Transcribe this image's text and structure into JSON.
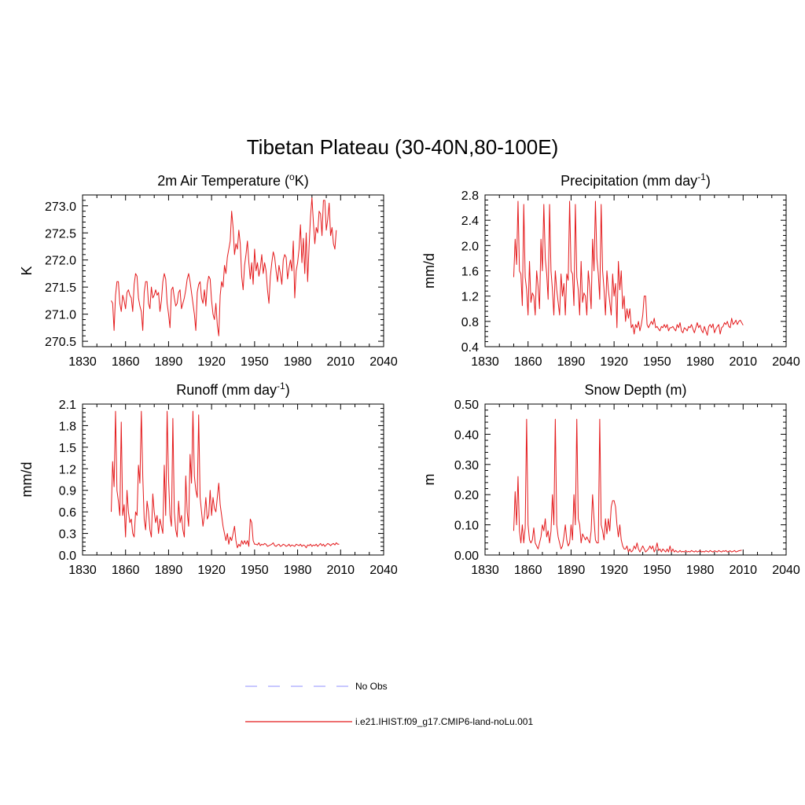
{
  "title": "Tibetan Plateau (30-40N,80-100E)",
  "colors": {
    "model": "#e41a1c",
    "obs": "#a6a6ff"
  },
  "legend": [
    {
      "label": "No Obs",
      "style": "dashed",
      "color": "#a6a6ff"
    },
    {
      "label": "i.e21.IHIST.f09_g17.CMIP6-land-noLu.001",
      "style": "solid",
      "color": "#e41a1c"
    }
  ],
  "chart_data": [
    {
      "type": "line",
      "title": "2m Air Temperature (°K)",
      "title_parts": {
        "main": "2m Air Temperature (",
        "sup": "o",
        "tail": "K)"
      },
      "xlabel": "",
      "ylabel": "K",
      "xlim": [
        1830,
        2040
      ],
      "ylim": [
        270.4,
        273.2
      ],
      "xticks": [
        1830,
        1860,
        1890,
        1920,
        1950,
        1980,
        2010,
        2040
      ],
      "yticks": [
        270.5,
        271.0,
        271.5,
        272.0,
        272.5,
        273.0
      ],
      "yticks_labels": [
        "270.5",
        "271.0",
        "271.5",
        "272.0",
        "272.5",
        "273.0"
      ],
      "series": [
        {
          "x_start": 1850,
          "x_step": 1,
          "values": [
            271.25,
            271.2,
            270.7,
            271.35,
            271.6,
            271.6,
            271.2,
            271.05,
            271.35,
            271.25,
            271.1,
            271.4,
            271.45,
            271.35,
            271.3,
            271.05,
            271.55,
            271.75,
            271.7,
            271.3,
            271.15,
            271.05,
            270.7,
            271.4,
            271.6,
            271.6,
            271.2,
            271.1,
            271.5,
            271.3,
            271.35,
            271.45,
            271.35,
            271.4,
            271.05,
            271.25,
            271.6,
            271.75,
            271.65,
            271.2,
            271.0,
            270.75,
            271.45,
            271.5,
            271.3,
            271.15,
            271.2,
            271.4,
            271.45,
            271.1,
            271.2,
            271.3,
            271.45,
            271.65,
            271.75,
            271.6,
            271.4,
            271.2,
            271.0,
            270.7,
            271.4,
            271.55,
            271.6,
            271.3,
            271.2,
            271.45,
            271.15,
            271.55,
            271.7,
            271.65,
            271.25,
            271.0,
            270.9,
            271.2,
            270.8,
            270.6,
            271.35,
            271.6,
            271.5,
            271.9,
            271.75,
            272.05,
            272.2,
            272.35,
            272.9,
            272.6,
            272.1,
            272.3,
            272.2,
            272.55,
            272.3,
            271.7,
            271.45,
            271.9,
            272.1,
            272.35,
            271.95,
            271.65,
            271.95,
            271.55,
            272.2,
            271.8,
            271.95,
            271.7,
            271.85,
            272.1,
            271.75,
            271.95,
            271.8,
            271.45,
            271.2,
            271.7,
            271.95,
            272.15,
            272.05,
            271.8,
            271.6,
            271.9,
            271.75,
            271.55,
            272.0,
            272.1,
            272.05,
            271.65,
            271.85,
            272.0,
            271.8,
            272.35,
            271.3,
            271.8,
            271.95,
            272.2,
            272.65,
            271.95,
            272.4,
            271.75,
            272.5,
            271.6,
            272.25,
            272.8,
            273.15,
            272.7,
            272.3,
            272.6,
            272.5,
            272.9,
            272.85,
            272.45,
            273.1,
            273.1,
            272.55,
            272.75,
            273.05,
            272.45,
            272.6,
            272.3,
            272.2,
            272.55
          ]
        }
      ]
    },
    {
      "type": "line",
      "title": "Precipitation (mm day⁻¹)",
      "title_parts": {
        "main": "Precipitation (mm day",
        "sup": "-1",
        "tail": ")"
      },
      "xlabel": "",
      "ylabel": "mm/d",
      "xlim": [
        1830,
        2040
      ],
      "ylim": [
        0.4,
        2.8
      ],
      "xticks": [
        1830,
        1860,
        1890,
        1920,
        1950,
        1980,
        2010,
        2040
      ],
      "yticks": [
        0.4,
        0.8,
        1.2,
        1.6,
        2.0,
        2.4,
        2.8
      ],
      "yticks_labels": [
        "0.4",
        "0.8",
        "1.2",
        "1.6",
        "2.0",
        "2.4",
        "2.8"
      ],
      "series": [
        {
          "x_start": 1850,
          "x_step": 1,
          "values": [
            1.5,
            2.1,
            1.7,
            2.7,
            1.6,
            1.55,
            1.05,
            2.65,
            1.5,
            1.3,
            0.9,
            1.75,
            1.1,
            1.25,
            1.2,
            0.9,
            1.6,
            1.35,
            1.0,
            2.1,
            1.6,
            2.65,
            1.8,
            1.55,
            1.15,
            2.65,
            1.6,
            1.3,
            0.9,
            1.6,
            1.3,
            1.1,
            0.9,
            1.55,
            1.2,
            1.4,
            0.9,
            1.55,
            1.45,
            2.7,
            1.6,
            1.55,
            1.05,
            2.65,
            1.5,
            1.3,
            0.9,
            1.75,
            1.1,
            1.25,
            1.2,
            0.9,
            1.6,
            1.35,
            1.0,
            2.1,
            1.6,
            2.7,
            1.8,
            1.55,
            1.15,
            2.65,
            1.6,
            1.3,
            0.9,
            1.6,
            1.3,
            1.1,
            0.9,
            1.55,
            1.2,
            1.4,
            0.7,
            1.75,
            1.3,
            1.6,
            1.0,
            1.2,
            0.8,
            1.0,
            0.85,
            1.0,
            0.7,
            0.75,
            0.6,
            0.75,
            0.7,
            0.8,
            0.65,
            0.75,
            0.9,
            1.2,
            1.2,
            0.75,
            0.7,
            0.75,
            0.8,
            0.75,
            0.85,
            0.7,
            0.72,
            0.68,
            0.65,
            0.72,
            0.7,
            0.75,
            0.7,
            0.75,
            0.65,
            0.7,
            0.7,
            0.72,
            0.68,
            0.65,
            0.75,
            0.7,
            0.78,
            0.65,
            0.62,
            0.7,
            0.68,
            0.65,
            0.72,
            0.7,
            0.75,
            0.68,
            0.62,
            0.7,
            0.78,
            0.7,
            0.74,
            0.66,
            0.62,
            0.72,
            0.65,
            0.58,
            0.72,
            0.75,
            0.7,
            0.76,
            0.62,
            0.68,
            0.72,
            0.75,
            0.6,
            0.7,
            0.72,
            0.78,
            0.75,
            0.8,
            0.72,
            0.7,
            0.85,
            0.75,
            0.78,
            0.82,
            0.75,
            0.8,
            0.82,
            0.78,
            0.74
          ]
        }
      ]
    },
    {
      "type": "line",
      "title": "Runoff (mm day⁻¹)",
      "title_parts": {
        "main": "Runoff (mm day",
        "sup": "-1",
        "tail": ")"
      },
      "xlabel": "",
      "ylabel": "mm/d",
      "xlim": [
        1830,
        2040
      ],
      "ylim": [
        0.0,
        2.1
      ],
      "xticks": [
        1830,
        1860,
        1890,
        1920,
        1950,
        1980,
        2010,
        2040
      ],
      "yticks": [
        0.0,
        0.3,
        0.6,
        0.9,
        1.2,
        1.5,
        1.8,
        2.1
      ],
      "yticks_labels": [
        "0.0",
        "0.3",
        "0.6",
        "0.9",
        "1.2",
        "1.5",
        "1.8",
        "2.1"
      ],
      "series": [
        {
          "x_start": 1850,
          "x_step": 1,
          "values": [
            0.6,
            1.3,
            0.95,
            2.0,
            0.9,
            0.75,
            0.55,
            1.85,
            0.55,
            0.7,
            0.25,
            0.9,
            0.6,
            0.45,
            0.5,
            0.3,
            0.25,
            0.6,
            0.55,
            1.25,
            1.0,
            2.0,
            1.1,
            0.5,
            0.35,
            0.75,
            0.6,
            0.35,
            0.25,
            0.85,
            0.6,
            0.45,
            0.55,
            0.3,
            0.5,
            0.4,
            0.3,
            1.25,
            0.55,
            2.0,
            1.05,
            0.55,
            0.4,
            1.9,
            0.6,
            0.35,
            0.25,
            0.75,
            0.45,
            0.55,
            0.35,
            0.25,
            1.1,
            0.6,
            0.4,
            1.4,
            1.0,
            2.0,
            1.1,
            0.9,
            0.8,
            1.95,
            0.8,
            0.6,
            0.4,
            0.55,
            0.8,
            0.5,
            0.55,
            0.9,
            0.55,
            0.8,
            0.65,
            0.6,
            0.8,
            1.0,
            0.7,
            0.55,
            0.4,
            0.3,
            0.2,
            0.3,
            0.15,
            0.25,
            0.2,
            0.3,
            0.4,
            0.2,
            0.1,
            0.15,
            0.12,
            0.2,
            0.15,
            0.2,
            0.15,
            0.2,
            0.12,
            0.5,
            0.45,
            0.2,
            0.15,
            0.15,
            0.14,
            0.17,
            0.13,
            0.15,
            0.14,
            0.16,
            0.15,
            0.12,
            0.13,
            0.14,
            0.15,
            0.17,
            0.13,
            0.12,
            0.14,
            0.15,
            0.12,
            0.13,
            0.15,
            0.14,
            0.12,
            0.13,
            0.15,
            0.12,
            0.14,
            0.13,
            0.12,
            0.15,
            0.14,
            0.13,
            0.15,
            0.12,
            0.14,
            0.13,
            0.1,
            0.14,
            0.13,
            0.15,
            0.12,
            0.14,
            0.13,
            0.15,
            0.12,
            0.14,
            0.16,
            0.13,
            0.15,
            0.12,
            0.14,
            0.16,
            0.15,
            0.13,
            0.15,
            0.16,
            0.14,
            0.17,
            0.15,
            0.15
          ]
        }
      ]
    },
    {
      "type": "line",
      "title": "Snow Depth (m)",
      "title_parts": {
        "main": "Snow Depth (m)",
        "sup": "",
        "tail": ""
      },
      "xlabel": "",
      "ylabel": "m",
      "xlim": [
        1830,
        2040
      ],
      "ylim": [
        0.0,
        0.5
      ],
      "xticks": [
        1830,
        1860,
        1890,
        1920,
        1950,
        1980,
        2010,
        2040
      ],
      "yticks": [
        0.0,
        0.1,
        0.2,
        0.3,
        0.4,
        0.5
      ],
      "yticks_labels": [
        "0.00",
        "0.10",
        "0.20",
        "0.30",
        "0.40",
        "0.50"
      ],
      "series": [
        {
          "x_start": 1850,
          "x_step": 1,
          "values": [
            0.08,
            0.21,
            0.1,
            0.26,
            0.08,
            0.04,
            0.1,
            0.04,
            0.09,
            0.45,
            0.1,
            0.05,
            0.04,
            0.05,
            0.09,
            0.04,
            0.03,
            0.02,
            0.04,
            0.06,
            0.1,
            0.08,
            0.12,
            0.06,
            0.08,
            0.04,
            0.08,
            0.2,
            0.1,
            0.45,
            0.1,
            0.06,
            0.04,
            0.02,
            0.03,
            0.06,
            0.1,
            0.05,
            0.03,
            0.04,
            0.1,
            0.05,
            0.2,
            0.1,
            0.45,
            0.12,
            0.1,
            0.04,
            0.07,
            0.06,
            0.05,
            0.06,
            0.05,
            0.04,
            0.08,
            0.2,
            0.12,
            0.05,
            0.04,
            0.04,
            0.45,
            0.1,
            0.08,
            0.05,
            0.12,
            0.07,
            0.12,
            0.08,
            0.16,
            0.18,
            0.18,
            0.16,
            0.1,
            0.06,
            0.1,
            0.05,
            0.03,
            0.02,
            0.02,
            0.03,
            0.01,
            0.02,
            0.01,
            0.015,
            0.03,
            0.02,
            0.04,
            0.02,
            0.01,
            0.02,
            0.03,
            0.02,
            0.01,
            0.015,
            0.02,
            0.03,
            0.02,
            0.03,
            0.01,
            0.02,
            0.04,
            0.015,
            0.02,
            0.01,
            0.02,
            0.015,
            0.01,
            0.02,
            0.01,
            0.03,
            0.01,
            0.02,
            0.01,
            0.015,
            0.01,
            0.01,
            0.015,
            0.01,
            0.012,
            0.01,
            0.015,
            0.01,
            0.012,
            0.01,
            0.015,
            0.012,
            0.01,
            0.014,
            0.01,
            0.012,
            0.015,
            0.01,
            0.012,
            0.01,
            0.014,
            0.012,
            0.01,
            0.015,
            0.012,
            0.01,
            0.014,
            0.012,
            0.01,
            0.015,
            0.012,
            0.01,
            0.014,
            0.012,
            0.015,
            0.01,
            0.012,
            0.014,
            0.01,
            0.012,
            0.015,
            0.01,
            0.012,
            0.014,
            0.015,
            0.016
          ]
        }
      ]
    }
  ]
}
